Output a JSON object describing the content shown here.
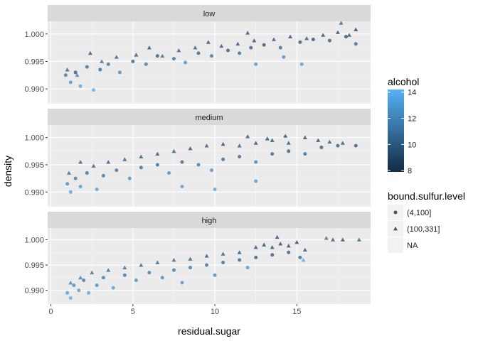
{
  "chart_data": {
    "type": "scatter",
    "xlabel": "residual.sugar",
    "ylabel": "density",
    "xlim": [
      -0.2,
      19.5
    ],
    "ylim": [
      0.9873,
      1.0023
    ],
    "x_ticks": [
      0,
      5,
      10,
      15
    ],
    "x_tick_labels": [
      "0",
      "5",
      "10",
      "15"
    ],
    "y_ticks": [
      0.99,
      0.995,
      1.0
    ],
    "y_tick_labels": [
      "0.990",
      "0.995",
      "1.000"
    ],
    "grid": true,
    "facets": [
      {
        "label": "low",
        "series": [
          {
            "shape": "circle",
            "points": [
              [
                0.9,
                0.9925,
                11.0
              ],
              [
                1.2,
                0.9912,
                12.3
              ],
              [
                1.5,
                0.993,
                9.8
              ],
              [
                1.8,
                0.9905,
                13.2
              ],
              [
                2.2,
                0.994,
                10.5
              ],
              [
                2.6,
                0.9898,
                13.5
              ],
              [
                3.0,
                0.9935,
                10.2
              ],
              [
                3.5,
                0.9945,
                10.8
              ],
              [
                4.2,
                0.993,
                11.8
              ],
              [
                5.0,
                0.995,
                10.0
              ],
              [
                5.8,
                0.9945,
                11.0
              ],
              [
                6.5,
                0.996,
                9.8
              ],
              [
                7.5,
                0.9955,
                10.6
              ],
              [
                8.2,
                0.9948,
                12.0
              ],
              [
                9.0,
                0.9965,
                10.0
              ],
              [
                9.8,
                0.996,
                10.8
              ],
              [
                10.8,
                0.997,
                9.6
              ],
              [
                11.5,
                0.9965,
                10.4
              ],
              [
                12.2,
                0.9975,
                9.8
              ],
              [
                13.0,
                0.998,
                9.6
              ],
              [
                14.0,
                0.9975,
                10.2
              ],
              [
                15.2,
                0.9985,
                9.6
              ],
              [
                16.0,
                0.999,
                9.4
              ],
              [
                17.0,
                0.9988,
                9.8
              ],
              [
                18.0,
                0.9995,
                9.2
              ],
              [
                18.6,
                0.9982,
                10.2
              ],
              [
                12.5,
                0.9945,
                12.5
              ],
              [
                14.2,
                0.9958,
                12.2
              ],
              [
                15.3,
                0.9945,
                12.8
              ]
            ]
          },
          {
            "shape": "triangle",
            "points": [
              [
                1.0,
                0.9935,
                10.0
              ],
              [
                1.6,
                0.9925,
                11.5
              ],
              [
                2.4,
                0.9965,
                9.4
              ],
              [
                3.1,
                0.995,
                10.2
              ],
              [
                4.0,
                0.9958,
                9.8
              ],
              [
                5.2,
                0.9962,
                9.6
              ],
              [
                6.0,
                0.9975,
                9.2
              ],
              [
                6.8,
                0.996,
                10.5
              ],
              [
                7.8,
                0.997,
                9.6
              ],
              [
                8.8,
                0.9975,
                9.8
              ],
              [
                9.6,
                0.9985,
                9.2
              ],
              [
                10.4,
                0.9978,
                9.6
              ],
              [
                11.4,
                0.9982,
                9.4
              ],
              [
                12.4,
                0.9988,
                9.2
              ],
              [
                13.6,
                0.999,
                9.6
              ],
              [
                14.6,
                0.9995,
                9.0
              ],
              [
                15.6,
                0.9992,
                9.6
              ],
              [
                16.6,
                0.9998,
                9.0
              ],
              [
                17.5,
                1.0003,
                9.2
              ],
              [
                18.2,
                0.9998,
                9.4
              ],
              [
                18.6,
                1.0008,
                8.8
              ],
              [
                17.7,
                1.002,
                10.2
              ],
              [
                12.0,
                1.0002,
                9.0
              ]
            ]
          }
        ]
      },
      {
        "label": "medium",
        "series": [
          {
            "shape": "circle",
            "points": [
              [
                1.0,
                0.9915,
                12.0
              ],
              [
                1.2,
                0.99,
                13.0
              ],
              [
                1.5,
                0.9925,
                11.0
              ],
              [
                1.8,
                0.991,
                12.5
              ],
              [
                2.2,
                0.9935,
                10.5
              ],
              [
                2.8,
                0.9905,
                12.8
              ],
              [
                3.2,
                0.993,
                11.0
              ],
              [
                4.0,
                0.994,
                10.6
              ],
              [
                4.8,
                0.9925,
                12.0
              ],
              [
                5.5,
                0.9945,
                10.5
              ],
              [
                6.5,
                0.995,
                10.2
              ],
              [
                7.2,
                0.9935,
                12.0
              ],
              [
                8.0,
                0.9955,
                10.4
              ],
              [
                9.0,
                0.995,
                11.0
              ],
              [
                9.8,
                0.994,
                12.2
              ],
              [
                10.5,
                0.996,
                10.4
              ],
              [
                11.5,
                0.9965,
                10.2
              ],
              [
                12.5,
                0.9955,
                11.4
              ],
              [
                13.5,
                0.997,
                10.0
              ],
              [
                14.5,
                0.9975,
                9.8
              ],
              [
                15.5,
                0.997,
                10.6
              ],
              [
                16.5,
                0.9982,
                9.6
              ],
              [
                17.5,
                0.9985,
                9.8
              ],
              [
                18.6,
                0.9985,
                9.6
              ],
              [
                10.0,
                0.9905,
                13.0
              ],
              [
                12.5,
                0.992,
                12.5
              ],
              [
                8.0,
                0.991,
                12.8
              ]
            ]
          },
          {
            "shape": "triangle",
            "points": [
              [
                1.1,
                0.9935,
                10.4
              ],
              [
                1.8,
                0.9955,
                9.6
              ],
              [
                2.6,
                0.9948,
                10.0
              ],
              [
                3.5,
                0.9955,
                9.8
              ],
              [
                4.5,
                0.996,
                9.8
              ],
              [
                5.5,
                0.9965,
                9.6
              ],
              [
                6.5,
                0.997,
                9.4
              ],
              [
                7.5,
                0.9975,
                9.6
              ],
              [
                8.5,
                0.998,
                9.2
              ],
              [
                9.5,
                0.9985,
                9.4
              ],
              [
                10.5,
                0.9988,
                9.0
              ],
              [
                11.5,
                0.9985,
                9.6
              ],
              [
                12.5,
                0.999,
                9.2
              ],
              [
                13.5,
                0.9995,
                9.0
              ],
              [
                14.5,
                0.999,
                9.4
              ],
              [
                15.5,
                1.0,
                8.8
              ],
              [
                16.3,
                0.9995,
                9.2
              ],
              [
                17.0,
                0.9992,
                9.6
              ],
              [
                17.8,
                0.999,
                9.4
              ],
              [
                12.0,
                1.0002,
                9.0
              ],
              [
                14.3,
                1.0003,
                8.8
              ],
              [
                13.2,
                0.9998,
                9.0
              ]
            ]
          }
        ]
      },
      {
        "label": "high",
        "series": [
          {
            "shape": "circle",
            "points": [
              [
                1.0,
                0.9895,
                12.8
              ],
              [
                1.2,
                0.9885,
                13.5
              ],
              [
                1.4,
                0.991,
                12.0
              ],
              [
                1.7,
                0.99,
                12.6
              ],
              [
                2.0,
                0.992,
                11.0
              ],
              [
                2.3,
                0.9895,
                13.2
              ],
              [
                2.8,
                0.991,
                12.0
              ],
              [
                3.2,
                0.9925,
                11.2
              ],
              [
                3.8,
                0.9905,
                12.8
              ],
              [
                4.5,
                0.993,
                11.0
              ],
              [
                5.2,
                0.992,
                12.0
              ],
              [
                6.0,
                0.9935,
                11.2
              ],
              [
                6.8,
                0.9925,
                12.0
              ],
              [
                7.5,
                0.994,
                11.0
              ],
              [
                8.5,
                0.9945,
                10.8
              ],
              [
                9.5,
                0.995,
                10.6
              ],
              [
                10.5,
                0.9955,
                10.4
              ],
              [
                11.5,
                0.996,
                10.2
              ],
              [
                12.5,
                0.9965,
                10.0
              ],
              [
                13.5,
                0.997,
                9.8
              ],
              [
                14.5,
                0.9975,
                9.8
              ],
              [
                15.2,
                0.9965,
                10.4
              ],
              [
                8.0,
                0.9915,
                12.5
              ],
              [
                10.0,
                0.993,
                12.0
              ],
              [
                12.0,
                0.9945,
                12.2
              ]
            ]
          },
          {
            "shape": "triangle",
            "points": [
              [
                1.2,
                0.9915,
                11.6
              ],
              [
                1.8,
                0.9925,
                11.0
              ],
              [
                2.5,
                0.9935,
                10.6
              ],
              [
                3.5,
                0.994,
                10.4
              ],
              [
                4.5,
                0.9945,
                10.4
              ],
              [
                5.5,
                0.995,
                10.2
              ],
              [
                6.5,
                0.9955,
                10.0
              ],
              [
                7.5,
                0.996,
                10.0
              ],
              [
                8.5,
                0.9962,
                9.8
              ],
              [
                9.5,
                0.9968,
                9.6
              ],
              [
                10.5,
                0.9972,
                9.6
              ],
              [
                11.5,
                0.9975,
                9.4
              ],
              [
                12.5,
                0.9985,
                9.2
              ],
              [
                13.0,
                0.999,
                9.0
              ],
              [
                13.5,
                0.9985,
                9.2
              ],
              [
                14.0,
                0.9992,
                8.8
              ],
              [
                14.5,
                0.9988,
                9.0
              ],
              [
                15.0,
                0.9995,
                8.8
              ],
              [
                15.5,
                0.998,
                9.4
              ],
              [
                17.2,
                1.0,
                9.4
              ],
              [
                17.8,
                1.0,
                9.2
              ],
              [
                18.8,
                1.0,
                10.0
              ],
              [
                16.8,
                1.0003,
                10.4
              ],
              [
                13.8,
                1.0005,
                9.0
              ],
              [
                15.4,
                0.996,
                13.2
              ]
            ]
          }
        ]
      }
    ],
    "legends": [
      {
        "title": "alcohol",
        "type": "colorbar",
        "range": [
          8,
          14
        ],
        "ticks": [
          8,
          10,
          12,
          14
        ],
        "tick_labels": [
          "8",
          "10",
          "12",
          "14"
        ],
        "low_color": "#132B43",
        "high_color": "#56B1F7"
      },
      {
        "title": "bound.sulfur.level",
        "type": "shape",
        "entries": [
          {
            "label": "(4,100]",
            "shape": "circle"
          },
          {
            "label": "(100,331]",
            "shape": "triangle"
          },
          {
            "label": "NA",
            "shape": "none"
          }
        ]
      }
    ]
  }
}
